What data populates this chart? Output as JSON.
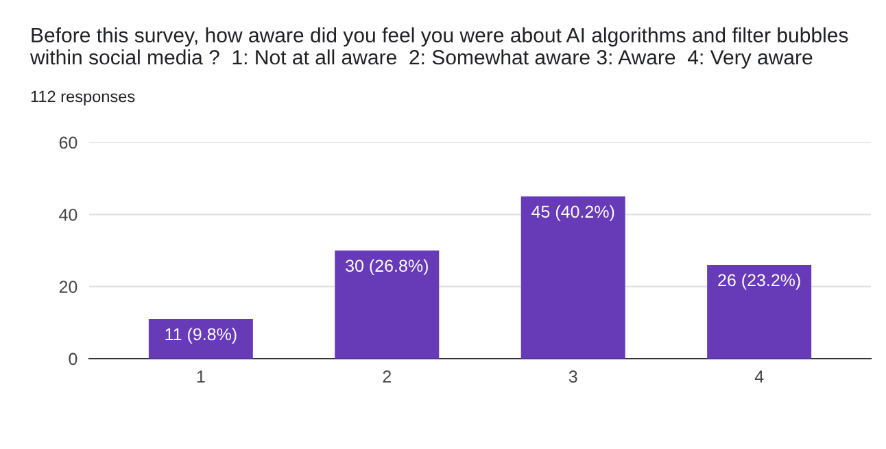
{
  "chart_data": {
    "type": "bar",
    "title": "Before this survey, how aware did you feel you were about AI algorithms and filter bubbles within social media ?  1: Not at all aware  2: Somewhat aware 3: Aware  4: Very aware",
    "subtitle": "112 responses",
    "categories": [
      "1",
      "2",
      "3",
      "4"
    ],
    "values": [
      11,
      30,
      45,
      26
    ],
    "value_labels": [
      "11 (9.8%)",
      "30 (26.8%)",
      "45 (40.2%)",
      "26 (23.2%)"
    ],
    "color": "#673ab7",
    "ylim": [
      0,
      60
    ],
    "yticks": [
      0,
      20,
      40,
      60
    ],
    "grid": "y"
  }
}
